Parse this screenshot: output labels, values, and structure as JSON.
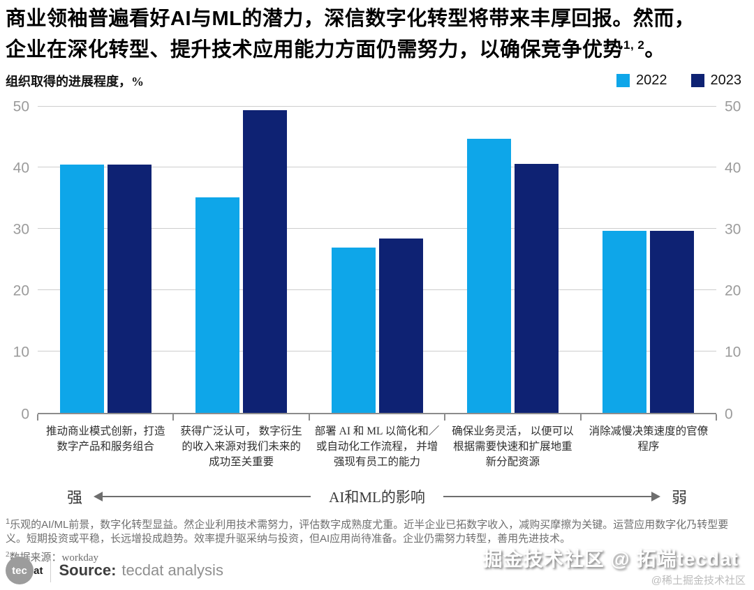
{
  "title": {
    "line1": "商业领袖普遍看好AI与ML的潜力，深信数字化转型将带来丰厚回报。然而，",
    "line2_main": "企业在深化转型、提升技术应用能力方面仍需努力，以确保竞争优势",
    "line2_sup": "1, 2",
    "line2_end": "。"
  },
  "chart_data": {
    "type": "bar",
    "title": "组织取得的进展程度，%",
    "ylim": [
      0,
      50
    ],
    "yticks": [
      0,
      10,
      20,
      30,
      40,
      50
    ],
    "grid": "horizontal",
    "legend_position": "top-right",
    "categories": [
      "推动商业模式创新，打造数字产品和服务组合",
      "获得广泛认可， 数字衍生的收入来源对我们未来的成功至关重要",
      "部署 AI 和 ML 以简化和／或自动化工作流程， 并增强现有员工的能力",
      "确保业务灵活， 以便可以根据需要快速和扩展地重新分配资源",
      "消除减慢决策速度的官僚程序"
    ],
    "series": [
      {
        "name": "2022",
        "color": "#0ea6e9",
        "values": [
          40.5,
          35.2,
          26.9,
          44.7,
          29.7
        ]
      },
      {
        "name": "2023",
        "color": "#0e2273",
        "values": [
          40.5,
          49.4,
          28.4,
          40.6,
          29.7
        ]
      }
    ],
    "impact_axis": {
      "left_label": "强",
      "center_label": "AI和ML的影响",
      "right_label": "弱"
    }
  },
  "footnotes": {
    "note1_sup": "1",
    "note1_text": "乐观的AI/ML前景，数字化转型显益。然企业利用技术需努力，评估数字成熟度尤重。近半企业已拓数字收入，减购买摩擦为关键。运营应用数字化乃转型要义。短期投资或平稳，长远增投成趋势。效率提升驱采纳与投资，但AI应用尚待准备。企业仍需努力转型，善用先进技术。",
    "note2_sup": "2",
    "note2_text": "数据来源：workday"
  },
  "source": {
    "logo_circle": "tec",
    "logo_rest": "dat",
    "label": "Source:",
    "value": "tecdat analysis"
  },
  "watermarks": {
    "main": "掘金技术社区 @ 拓端tecdat",
    "sub": "@稀土掘金技术社区"
  }
}
